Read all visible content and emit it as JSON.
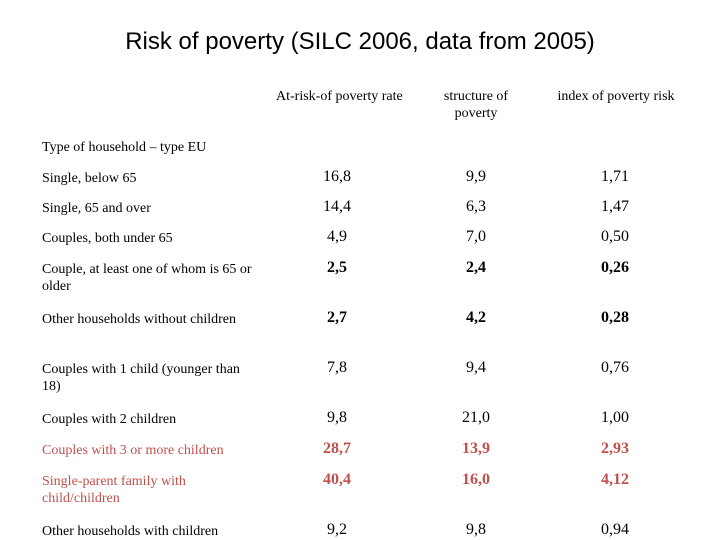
{
  "title": "Risk of poverty (SILC 2006, data from 2005)",
  "headers": {
    "col1": "At-risk-of poverty rate",
    "col2": "structure of poverty",
    "col3": "index of poverty risk"
  },
  "type_label": "Type of household – type EU",
  "rows": [
    {
      "label": "Single, below 65",
      "rate": "16,8",
      "structure": "9,9",
      "index": "1,71"
    },
    {
      "label": "Single, 65 and over",
      "rate": "14,4",
      "structure": "6,3",
      "index": "1,47"
    },
    {
      "label": "Couples, both under 65",
      "rate": "4,9",
      "structure": "7,0",
      "index": "0,50"
    },
    {
      "label": "Couple, at least one of whom is 65 or older",
      "rate": "2,5",
      "structure": "2,4",
      "index": "0,26"
    },
    {
      "label": "Other households without children",
      "rate": "2,7",
      "structure": "4,2",
      "index": "0,28"
    },
    {
      "label": "Couples with 1 child (younger than 18)",
      "rate": "7,8",
      "structure": "9,4",
      "index": "0,76"
    },
    {
      "label": "Couples with 2 children",
      "rate": "9,8",
      "structure": "21,0",
      "index": "1,00"
    },
    {
      "label": "Couples with 3 or more children",
      "rate": "28,7",
      "structure": "13,9",
      "index": "2,93"
    },
    {
      "label": "Single-parent family with child/children",
      "rate": "40,4",
      "structure": "16,0",
      "index": "4,12"
    },
    {
      "label": "Other households with children",
      "rate": "9,2",
      "structure": "9,8",
      "index": "0,94"
    }
  ],
  "colors": {
    "highlight": "#c0504d",
    "text": "#000000"
  }
}
